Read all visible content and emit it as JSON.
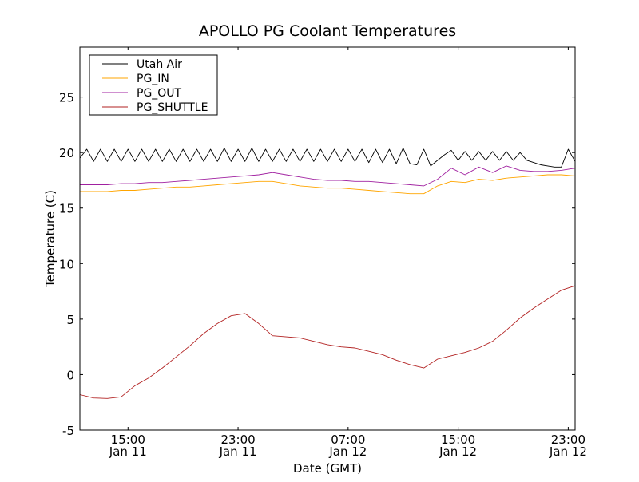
{
  "chart_data": {
    "type": "line",
    "title": "APOLLO PG Coolant Temperatures",
    "xlabel": "Date (GMT)",
    "ylabel": "Temperature (C)",
    "x_unit": "hours since Jan 11 00:00 GMT",
    "xlim": [
      11.5,
      47.5
    ],
    "ylim": [
      -5,
      29.5
    ],
    "grid": false,
    "legend_position": "top-left",
    "x_ticks": [
      {
        "value": 15,
        "time": "15:00",
        "date": "Jan 11"
      },
      {
        "value": 23,
        "time": "23:00",
        "date": "Jan 11"
      },
      {
        "value": 31,
        "time": "07:00",
        "date": "Jan 12"
      },
      {
        "value": 39,
        "time": "15:00",
        "date": "Jan 12"
      },
      {
        "value": 47,
        "time": "23:00",
        "date": "Jan 12"
      }
    ],
    "y_ticks": [
      -5,
      0,
      5,
      10,
      15,
      20,
      25
    ],
    "series": [
      {
        "name": "Utah Air",
        "color": "#000000",
        "x_start": 11.5,
        "x_step": 0.5,
        "values": [
          19.5,
          20.3,
          19.2,
          20.3,
          19.2,
          20.3,
          19.2,
          20.3,
          19.2,
          20.3,
          19.2,
          20.3,
          19.2,
          20.3,
          19.2,
          20.3,
          19.2,
          20.3,
          19.2,
          20.3,
          19.2,
          20.4,
          19.2,
          20.3,
          19.2,
          20.4,
          19.2,
          20.3,
          19.2,
          20.3,
          19.2,
          20.3,
          19.2,
          20.3,
          19.2,
          20.3,
          19.2,
          20.3,
          19.2,
          20.3,
          19.2,
          20.3,
          19.1,
          20.3,
          19.1,
          20.3,
          19.0,
          20.4,
          19.0,
          18.9,
          20.3,
          18.8,
          19.3,
          19.8,
          20.2,
          19.3,
          20.1,
          19.3,
          20.1,
          19.3,
          20.1,
          19.3,
          20.1,
          19.3,
          20.0,
          19.3,
          19.1,
          18.9,
          18.8,
          18.7,
          18.7,
          20.3,
          19.2
        ]
      },
      {
        "name": "PG_IN",
        "color": "#FFA500",
        "x_start": 11.5,
        "x_step": 1,
        "values": [
          16.5,
          16.5,
          16.5,
          16.6,
          16.6,
          16.7,
          16.8,
          16.9,
          16.9,
          17.0,
          17.1,
          17.2,
          17.3,
          17.4,
          17.4,
          17.2,
          17.0,
          16.9,
          16.8,
          16.8,
          16.7,
          16.6,
          16.5,
          16.4,
          16.3,
          16.3,
          17.0,
          17.4,
          17.3,
          17.6,
          17.5,
          17.7,
          17.8,
          17.9,
          18.0,
          18.0,
          17.9
        ]
      },
      {
        "name": "PG_OUT",
        "color": "#A020A0",
        "x_start": 11.5,
        "x_step": 1,
        "values": [
          17.1,
          17.1,
          17.1,
          17.2,
          17.2,
          17.3,
          17.3,
          17.4,
          17.5,
          17.6,
          17.7,
          17.8,
          17.9,
          18.0,
          18.2,
          18.0,
          17.8,
          17.6,
          17.5,
          17.5,
          17.4,
          17.4,
          17.3,
          17.2,
          17.1,
          17.0,
          17.6,
          18.6,
          18.0,
          18.7,
          18.2,
          18.8,
          18.4,
          18.3,
          18.3,
          18.4,
          18.6
        ]
      },
      {
        "name": "PG_SHUTTLE",
        "color": "#B22222",
        "x_start": 11.5,
        "x_step": 1,
        "values": [
          -1.8,
          -2.1,
          -2.15,
          -2.0,
          -1.0,
          -0.3,
          0.6,
          1.6,
          2.6,
          3.7,
          4.6,
          5.3,
          5.5,
          4.6,
          3.5,
          3.4,
          3.3,
          3.0,
          2.7,
          2.5,
          2.4,
          2.1,
          1.8,
          1.3,
          0.9,
          0.6,
          1.4,
          1.7,
          2.0,
          2.4,
          3.0,
          4.0,
          5.1,
          6.0,
          6.8,
          7.6,
          8.0
        ]
      }
    ]
  }
}
